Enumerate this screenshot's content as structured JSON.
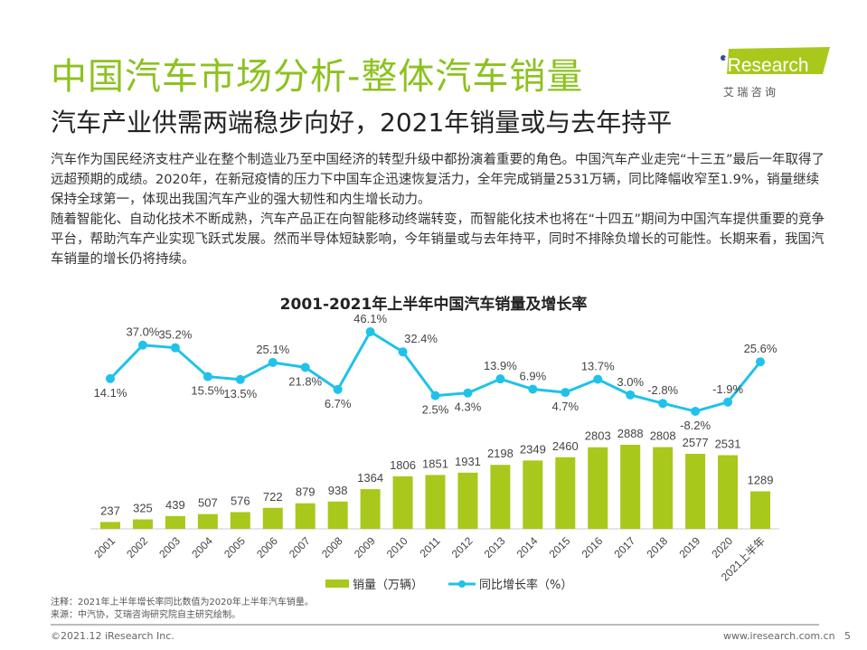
{
  "header": {
    "title": "中国汽车市场分析-整体汽车销量",
    "subtitle": "汽车产业供需两端稳步向好，2021年销量或与去年持平"
  },
  "logo": {
    "brand": "iResearch",
    "cn": "艾 瑞 咨 询",
    "color": "#a8c81c"
  },
  "body": [
    "汽车作为国民经济支柱产业在整个制造业乃至中国经济的转型升级中都扮演着重要的角色。中国汽车产业走完“十三五”最后一年取得了远超预期的成绩。2020年，在新冠疫情的压力下中国车企迅速恢复活力，全年完成销量2531万辆，同比降幅收窄至1.9%，销量继续保持全球第一，体现出我国汽车产业的强大韧性和内生增长动力。",
    "随着智能化、自动化技术不断成熟，汽车产品正在向智能移动终端转变，而智能化技术也将在“十四五”期间为中国汽车提供重要的竞争平台，帮助汽车产业实现飞跃式发展。然而半导体短缺影响，今年销量或与去年持平，同时不排除负增长的可能性。长期来看，我国汽车销量的增长仍将持续。"
  ],
  "chart_data": {
    "type": "bar+line",
    "title": "2001-2021年上半年中国汽车销量及增长率",
    "categories": [
      "2001",
      "2002",
      "2003",
      "2004",
      "2005",
      "2006",
      "2007",
      "2008",
      "2009",
      "2010",
      "2011",
      "2012",
      "2013",
      "2014",
      "2015",
      "2016",
      "2017",
      "2018",
      "2019",
      "2020",
      "2021上半年"
    ],
    "series": [
      {
        "name": "销量（万辆）",
        "type": "bar",
        "color": "#a8c81c",
        "values": [
          237,
          325,
          439,
          507,
          576,
          722,
          879,
          938,
          1364,
          1806,
          1851,
          1931,
          2198,
          2349,
          2460,
          2803,
          2888,
          2808,
          2577,
          2531,
          1289
        ]
      },
      {
        "name": "同比增长率（%）",
        "type": "line",
        "color": "#1fc2ea",
        "values": [
          14.1,
          37.0,
          35.2,
          15.5,
          13.5,
          25.1,
          21.8,
          6.7,
          46.1,
          32.4,
          2.5,
          4.3,
          13.9,
          6.9,
          4.7,
          13.7,
          3.0,
          -2.8,
          -8.2,
          -1.9,
          25.6
        ]
      }
    ],
    "legend": "bottom"
  },
  "notes": [
    "注释：2021年上半年增长率同比数值为2020年上半年汽车销量。",
    "来源：中汽协，艾瑞咨询研究院自主研究绘制。"
  ],
  "footer": {
    "copyright": "©2021.12 iResearch Inc.",
    "url": "www.iresearch.com.cn",
    "page": "5"
  }
}
